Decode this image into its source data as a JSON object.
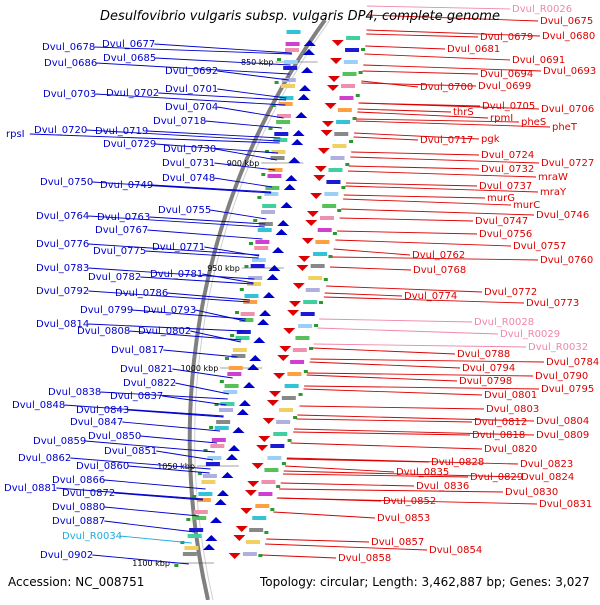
{
  "title": "Desulfovibrio vulgaris subsp. vulgaris DP4, complete genome",
  "footer": {
    "accession": "Accession: NC_008751",
    "summary": "Topology: circular; Length: 3,462,887 bp; Genes: 3,027"
  },
  "colors": {
    "forward": "#0000cc",
    "reverse": "#dd0000",
    "rna_forward": "#22aadd",
    "rna_reverse": "#ee88aa",
    "backbone": "#808080"
  },
  "ruler_labels": [
    "850 kbp",
    "900 kbp",
    "950 kbp",
    "1000 kbp",
    "1050 kbp",
    "1100 kbp"
  ],
  "left_labels": [
    "Dvul_0678",
    "Dvul_0677",
    "Dvul_0686",
    "Dvul_0685",
    "Dvul_0692",
    "Dvul_0703",
    "Dvul_0702",
    "Dvul_0701",
    "Dvul_0704",
    "Dvul_0718",
    "rpsI",
    "Dvul_0720",
    "Dvul_0719",
    "Dvul_0729",
    "Dvul_0730",
    "Dvul_0731",
    "Dvul_0748",
    "Dvul_0750",
    "Dvul_0749",
    "Dvul_0755",
    "Dvul_0764",
    "Dvul_0763",
    "Dvul_0767",
    "Dvul_0776",
    "Dvul_0775",
    "Dvul_0771",
    "Dvul_0783",
    "Dvul_0782",
    "Dvul_0781",
    "Dvul_0792",
    "Dvul_0786",
    "Dvul_0799",
    "Dvul_0793",
    "Dvul_0814",
    "Dvul_0808",
    "Dvul_0802",
    "Dvul_0817",
    "Dvul_0821",
    "Dvul_0822",
    "Dvul_0838",
    "Dvul_0837",
    "Dvul_0848",
    "Dvul_0843",
    "Dvul_0847",
    "Dvul_0859",
    "Dvul_0850",
    "Dvul_0851",
    "Dvul_0862",
    "Dvul_0860",
    "Dvul_0866",
    "Dvul_0881",
    "Dvul_0872",
    "Dvul_0880",
    "Dvul_0887",
    "Dvul_R0034",
    "Dvul_0902"
  ],
  "right_labels": [
    "Dvul_R0026",
    "Dvul_0675",
    "Dvul_0679",
    "Dvul_0680",
    "Dvul_0681",
    "Dvul_0691",
    "Dvul_0694",
    "Dvul_0693",
    "Dvul_0699",
    "Dvul_0700",
    "Dvul_0705",
    "Dvul_0706",
    "thrS",
    "rpmI",
    "pheS",
    "pheT",
    "Dvul_0717",
    "pgk",
    "Dvul_0724",
    "Dvul_0727",
    "Dvul_0732",
    "mraW",
    "Dvul_0737",
    "mraY",
    "murG",
    "murC",
    "Dvul_0747",
    "Dvul_0746",
    "Dvul_0756",
    "Dvul_0757",
    "Dvul_0760",
    "Dvul_0762",
    "Dvul_0768",
    "Dvul_0772",
    "Dvul_0774",
    "Dvul_0773",
    "Dvul_R0028",
    "Dvul_R0029",
    "Dvul_R0032",
    "Dvul_0788",
    "Dvul_0784",
    "Dvul_0794",
    "Dvul_0790",
    "Dvul_0798",
    "Dvul_0795",
    "Dvul_0801",
    "Dvul_0803",
    "Dvul_0804",
    "Dvul_0812",
    "Dvul_0809",
    "Dvul_0818",
    "Dvul_0820",
    "Dvul_0828",
    "Dvul_0823",
    "Dvul_0829",
    "Dvul_0824",
    "Dvul_0830",
    "Dvul_0835",
    "Dvul_0836",
    "Dvul_0831",
    "Dvul_0852",
    "Dvul_0853",
    "Dvul_0857",
    "Dvul_0854",
    "Dvul_0858"
  ]
}
